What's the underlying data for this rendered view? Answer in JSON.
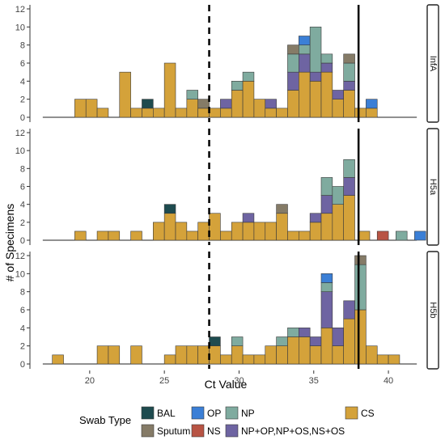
{
  "chart_data": {
    "type": "bar",
    "subtype": "stacked-histogram-faceted",
    "xlabel": "Ct Value",
    "ylabel": "# of Specimens",
    "xlim": [
      16,
      42
    ],
    "x_ticks": [
      20,
      25,
      30,
      35,
      40
    ],
    "ylim": [
      0,
      12
    ],
    "y_ticks": [
      0,
      2,
      4,
      6,
      8,
      10,
      12
    ],
    "bin_width": 0.75,
    "reference_lines": {
      "dashed_x": 28,
      "solid_x": 38
    },
    "legend": {
      "title": "Swab Type",
      "placement": "bottom",
      "entries": [
        {
          "key": "BAL",
          "label": "BAL",
          "color": "#1e4b4f"
        },
        {
          "key": "Sputum",
          "label": "Sputum",
          "color": "#857b67"
        },
        {
          "key": "OP",
          "label": "OP",
          "color": "#3b7fd6"
        },
        {
          "key": "NS",
          "label": "NS",
          "color": "#b85444"
        },
        {
          "key": "NP",
          "label": "NP",
          "color": "#7fab9f"
        },
        {
          "key": "Combo",
          "label": "NP+OP,NP+OS,NS+OS",
          "color": "#6e64a2"
        },
        {
          "key": "CS",
          "label": "CS",
          "color": "#d4a23a"
        }
      ]
    },
    "panels": [
      {
        "label": "InfA",
        "bins": [
          {
            "x": 19.0,
            "stack": {
              "CS": 2
            }
          },
          {
            "x": 19.75,
            "stack": {
              "CS": 2
            }
          },
          {
            "x": 20.5,
            "stack": {
              "CS": 1
            }
          },
          {
            "x": 22.0,
            "stack": {
              "CS": 5
            }
          },
          {
            "x": 22.75,
            "stack": {
              "CS": 1
            }
          },
          {
            "x": 23.5,
            "stack": {
              "CS": 1,
              "BAL": 1
            }
          },
          {
            "x": 24.25,
            "stack": {
              "CS": 1
            }
          },
          {
            "x": 25.0,
            "stack": {
              "CS": 6
            }
          },
          {
            "x": 25.75,
            "stack": {
              "CS": 1
            }
          },
          {
            "x": 26.5,
            "stack": {
              "CS": 2,
              "NP": 1
            }
          },
          {
            "x": 27.25,
            "stack": {
              "CS": 1,
              "Sputum": 1
            }
          },
          {
            "x": 28.0,
            "stack": {
              "CS": 1
            }
          },
          {
            "x": 28.75,
            "stack": {
              "CS": 1,
              "Combo": 1
            }
          },
          {
            "x": 29.5,
            "stack": {
              "CS": 3,
              "NP": 1
            }
          },
          {
            "x": 30.25,
            "stack": {
              "CS": 4,
              "NP": 1
            }
          },
          {
            "x": 31.0,
            "stack": {
              "CS": 2
            }
          },
          {
            "x": 31.75,
            "stack": {
              "CS": 1,
              "Combo": 1
            }
          },
          {
            "x": 32.5,
            "stack": {
              "CS": 1
            }
          },
          {
            "x": 33.25,
            "stack": {
              "CS": 3,
              "Combo": 2,
              "NP": 2,
              "Sputum": 1
            }
          },
          {
            "x": 34.0,
            "stack": {
              "CS": 5,
              "Combo": 2,
              "NP": 1,
              "OP": 1
            }
          },
          {
            "x": 34.75,
            "stack": {
              "CS": 4,
              "Combo": 1,
              "NP": 5
            }
          },
          {
            "x": 35.5,
            "stack": {
              "CS": 5,
              "Combo": 1,
              "NP": 1
            }
          },
          {
            "x": 36.25,
            "stack": {
              "CS": 2,
              "Combo": 1
            }
          },
          {
            "x": 37.0,
            "stack": {
              "CS": 3,
              "Combo": 1,
              "NP": 2,
              "Sputum": 1
            }
          },
          {
            "x": 37.75,
            "stack": {
              "CS": 1
            }
          },
          {
            "x": 38.5,
            "stack": {
              "CS": 1,
              "OP": 1
            }
          }
        ]
      },
      {
        "label": "H5a",
        "bins": [
          {
            "x": 19.0,
            "stack": {
              "CS": 1
            }
          },
          {
            "x": 20.5,
            "stack": {
              "CS": 1
            }
          },
          {
            "x": 21.25,
            "stack": {
              "CS": 1
            }
          },
          {
            "x": 22.75,
            "stack": {
              "CS": 1
            }
          },
          {
            "x": 24.25,
            "stack": {
              "CS": 2
            }
          },
          {
            "x": 25.0,
            "stack": {
              "CS": 3,
              "BAL": 1
            }
          },
          {
            "x": 25.75,
            "stack": {
              "CS": 2
            }
          },
          {
            "x": 26.5,
            "stack": {
              "CS": 1
            }
          },
          {
            "x": 27.25,
            "stack": {
              "CS": 2
            }
          },
          {
            "x": 28.0,
            "stack": {
              "CS": 3
            }
          },
          {
            "x": 28.75,
            "stack": {
              "CS": 1
            }
          },
          {
            "x": 29.5,
            "stack": {
              "CS": 2
            }
          },
          {
            "x": 30.25,
            "stack": {
              "CS": 2,
              "Combo": 1
            }
          },
          {
            "x": 31.0,
            "stack": {
              "CS": 2
            }
          },
          {
            "x": 31.75,
            "stack": {
              "CS": 2
            }
          },
          {
            "x": 32.5,
            "stack": {
              "CS": 3,
              "Sputum": 1
            }
          },
          {
            "x": 33.25,
            "stack": {
              "CS": 1
            }
          },
          {
            "x": 34.0,
            "stack": {
              "CS": 1
            }
          },
          {
            "x": 34.75,
            "stack": {
              "CS": 2,
              "Combo": 1
            }
          },
          {
            "x": 35.5,
            "stack": {
              "CS": 3,
              "Combo": 2,
              "NP": 2
            }
          },
          {
            "x": 36.25,
            "stack": {
              "CS": 4,
              "NP": 2
            }
          },
          {
            "x": 37.0,
            "stack": {
              "CS": 5,
              "Combo": 2,
              "NP": 2
            }
          },
          {
            "x": 38.0,
            "stack": {
              "CS": 1
            }
          },
          {
            "x": 39.25,
            "stack": {
              "NS": 1
            }
          },
          {
            "x": 40.5,
            "stack": {
              "NP": 1
            }
          },
          {
            "x": 41.75,
            "stack": {
              "OP": 1
            }
          }
        ]
      },
      {
        "label": "H5b",
        "bins": [
          {
            "x": 17.5,
            "stack": {
              "CS": 1
            }
          },
          {
            "x": 20.5,
            "stack": {
              "CS": 2
            }
          },
          {
            "x": 21.25,
            "stack": {
              "CS": 2
            }
          },
          {
            "x": 22.75,
            "stack": {
              "CS": 2
            }
          },
          {
            "x": 25.0,
            "stack": {
              "CS": 1
            }
          },
          {
            "x": 25.75,
            "stack": {
              "CS": 2
            }
          },
          {
            "x": 26.5,
            "stack": {
              "CS": 2
            }
          },
          {
            "x": 27.25,
            "stack": {
              "CS": 2
            }
          },
          {
            "x": 28.0,
            "stack": {
              "CS": 2,
              "BAL": 1
            }
          },
          {
            "x": 28.75,
            "stack": {
              "CS": 1
            }
          },
          {
            "x": 29.5,
            "stack": {
              "CS": 2,
              "NP": 1
            }
          },
          {
            "x": 30.25,
            "stack": {
              "CS": 1
            }
          },
          {
            "x": 31.0,
            "stack": {
              "CS": 1
            }
          },
          {
            "x": 31.75,
            "stack": {
              "CS": 2
            }
          },
          {
            "x": 32.5,
            "stack": {
              "CS": 2,
              "NP": 1
            }
          },
          {
            "x": 33.25,
            "stack": {
              "CS": 3,
              "NP": 1
            }
          },
          {
            "x": 34.0,
            "stack": {
              "CS": 3,
              "Combo": 1
            }
          },
          {
            "x": 34.75,
            "stack": {
              "CS": 2,
              "Combo": 1
            }
          },
          {
            "x": 35.5,
            "stack": {
              "CS": 4,
              "Combo": 4,
              "NP": 1,
              "OP": 1
            }
          },
          {
            "x": 36.25,
            "stack": {
              "CS": 2,
              "Combo": 2
            }
          },
          {
            "x": 37.0,
            "stack": {
              "CS": 5,
              "Combo": 2
            }
          },
          {
            "x": 37.75,
            "stack": {
              "CS": 6,
              "NP": 5,
              "Sputum": 1
            }
          },
          {
            "x": 38.5,
            "stack": {
              "CS": 2
            }
          },
          {
            "x": 39.25,
            "stack": {
              "CS": 1
            }
          },
          {
            "x": 40.0,
            "stack": {
              "CS": 1
            }
          }
        ]
      }
    ]
  }
}
